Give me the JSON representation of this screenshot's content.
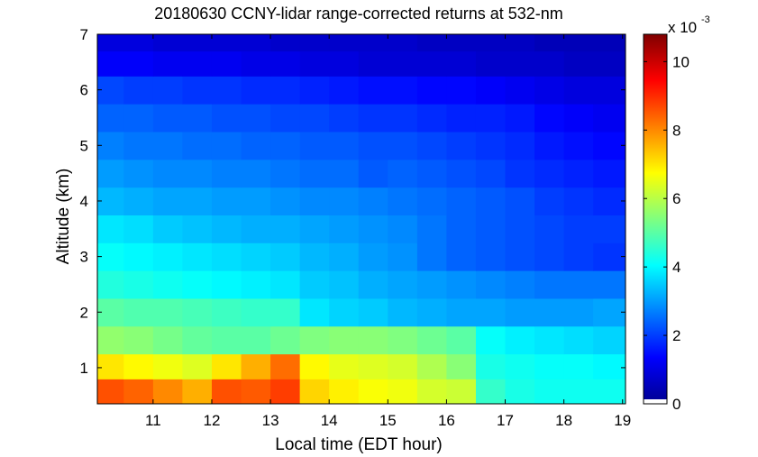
{
  "chart_data": {
    "type": "heatmap",
    "title": "20180630 CCNY-lidar range-corrected returns at 532-nm",
    "xlabel": "Local time (EDT hour)",
    "ylabel": "Altitude (km)",
    "xlim": [
      10.05,
      19.05
    ],
    "ylim": [
      0.35,
      7.0
    ],
    "x_ticks": [
      "11",
      "12",
      "13",
      "14",
      "15",
      "16",
      "17",
      "18",
      "19"
    ],
    "y_ticks": [
      "1",
      "2",
      "3",
      "4",
      "5",
      "6",
      "7"
    ],
    "colorbar": {
      "ticks": [
        "0",
        "2",
        "4",
        "6",
        "8",
        "10"
      ],
      "exponent_base": "x 10",
      "exponent": "-3",
      "clim": [
        0,
        0.0108
      ],
      "colormap": "jet"
    },
    "data_units": "x 10^-3 (arbitrary range-corrected signal)",
    "x": [
      10.25,
      10.75,
      11.25,
      11.75,
      12.25,
      12.75,
      13.25,
      13.75,
      14.25,
      14.75,
      15.25,
      15.75,
      16.25,
      16.75,
      17.25,
      17.75,
      18.25,
      18.75
    ],
    "y": [
      0.6,
      1.0,
      1.5,
      2.0,
      2.5,
      3.0,
      3.5,
      4.0,
      4.5,
      5.0,
      5.5,
      6.0,
      6.5,
      6.9
    ],
    "z": [
      [
        8.6,
        8.4,
        8.0,
        7.6,
        8.6,
        8.5,
        8.8,
        7.2,
        6.9,
        6.7,
        6.6,
        6.3,
        6.2,
        4.6,
        4.3,
        4.2,
        4.2,
        4.2
      ],
      [
        7.0,
        6.8,
        6.6,
        6.4,
        7.0,
        7.6,
        8.3,
        6.8,
        6.5,
        6.4,
        6.3,
        5.9,
        5.5,
        4.3,
        4.2,
        4.1,
        4.1,
        4.0
      ],
      [
        5.6,
        5.5,
        5.3,
        5.1,
        5.0,
        5.0,
        5.2,
        5.4,
        5.5,
        5.5,
        5.4,
        5.2,
        5.0,
        4.1,
        3.9,
        3.8,
        3.7,
        3.6
      ],
      [
        5.0,
        4.9,
        4.9,
        4.8,
        4.7,
        4.6,
        4.6,
        3.8,
        3.6,
        3.5,
        3.3,
        3.2,
        3.1,
        3.1,
        3.0,
        3.0,
        3.0,
        3.1
      ],
      [
        4.4,
        4.3,
        4.2,
        4.1,
        4.0,
        3.9,
        3.8,
        3.5,
        3.4,
        3.2,
        3.1,
        3.0,
        2.9,
        2.8,
        2.7,
        2.6,
        2.6,
        2.6
      ],
      [
        4.1,
        4.0,
        3.9,
        3.8,
        3.7,
        3.6,
        3.5,
        3.3,
        3.2,
        3.0,
        2.9,
        2.6,
        2.4,
        2.3,
        2.2,
        2.1,
        2.0,
        1.9
      ],
      [
        3.8,
        3.7,
        3.5,
        3.4,
        3.3,
        3.2,
        3.2,
        3.1,
        3.0,
        2.9,
        2.8,
        2.6,
        2.4,
        2.3,
        2.2,
        2.1,
        2.0,
        2.0
      ],
      [
        3.3,
        3.2,
        3.1,
        3.1,
        3.0,
        3.0,
        2.9,
        2.8,
        2.8,
        2.7,
        2.6,
        2.5,
        2.4,
        2.3,
        2.2,
        2.0,
        1.9,
        1.8
      ],
      [
        3.0,
        2.9,
        2.8,
        2.8,
        2.7,
        2.7,
        2.6,
        2.5,
        2.5,
        2.3,
        2.4,
        2.3,
        2.2,
        2.1,
        1.9,
        1.8,
        1.7,
        1.6
      ],
      [
        2.7,
        2.6,
        2.6,
        2.5,
        2.5,
        2.4,
        2.4,
        2.3,
        2.3,
        2.2,
        2.2,
        2.1,
        2.0,
        1.9,
        1.8,
        1.6,
        1.5,
        1.4
      ],
      [
        2.4,
        2.4,
        2.3,
        2.3,
        2.2,
        2.2,
        2.1,
        2.1,
        2.0,
        1.9,
        1.9,
        1.8,
        1.7,
        1.7,
        1.6,
        1.4,
        1.3,
        1.2
      ],
      [
        2.1,
        2.0,
        2.0,
        1.9,
        1.9,
        1.8,
        1.8,
        1.7,
        1.6,
        1.5,
        1.5,
        1.4,
        1.4,
        1.3,
        1.2,
        1.1,
        1.0,
        1.0
      ],
      [
        1.3,
        1.3,
        1.2,
        1.2,
        1.2,
        1.1,
        1.1,
        1.0,
        1.0,
        0.9,
        0.9,
        0.9,
        0.9,
        0.8,
        0.8,
        0.8,
        0.7,
        0.7
      ],
      [
        1.0,
        1.0,
        0.9,
        0.9,
        0.9,
        0.9,
        0.8,
        0.8,
        0.8,
        0.8,
        0.8,
        0.7,
        0.7,
        0.7,
        0.7,
        0.6,
        0.6,
        0.6
      ]
    ]
  }
}
